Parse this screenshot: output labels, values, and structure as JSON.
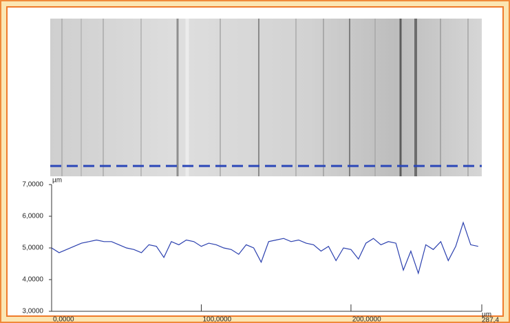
{
  "chart_data": {
    "type": "line",
    "ylabel": "µm",
    "xlabel": "µm",
    "x": [
      0,
      5,
      10,
      15,
      20,
      25,
      30,
      35,
      40,
      45,
      50,
      55,
      60,
      65,
      70,
      75,
      80,
      85,
      90,
      95,
      100,
      105,
      110,
      115,
      120,
      125,
      130,
      135,
      140,
      145,
      150,
      155,
      160,
      165,
      170,
      175,
      180,
      185,
      190,
      195,
      200,
      205,
      210,
      215,
      220,
      225,
      230,
      235,
      240,
      245,
      250,
      255,
      260,
      265,
      270,
      275,
      280,
      285
    ],
    "values": [
      5.0,
      4.85,
      4.95,
      5.05,
      5.15,
      5.2,
      5.25,
      5.2,
      5.2,
      5.1,
      5.0,
      4.95,
      4.85,
      5.1,
      5.05,
      4.7,
      5.2,
      5.1,
      5.25,
      5.2,
      5.05,
      5.15,
      5.1,
      5.0,
      4.95,
      4.8,
      5.1,
      5.0,
      4.55,
      5.2,
      5.25,
      5.3,
      5.2,
      5.25,
      5.15,
      5.1,
      4.9,
      5.05,
      4.6,
      5.0,
      4.95,
      4.65,
      5.15,
      5.3,
      5.1,
      5.2,
      5.15,
      4.3,
      4.9,
      4.2,
      5.1,
      4.95,
      5.2,
      4.6,
      5.05,
      5.8,
      5.1,
      5.05
    ],
    "color": "#2a3fae",
    "xlim": [
      0,
      287.4
    ],
    "xticks": [
      {
        "value": 0,
        "label": "0,0000"
      },
      {
        "value": 100,
        "label": "100,0000"
      },
      {
        "value": 200,
        "label": "200,0000"
      },
      {
        "value": 287.4,
        "label": "287,4"
      }
    ],
    "ylim": [
      3,
      7
    ],
    "yticks": [
      {
        "value": 3,
        "label": "3,0000"
      },
      {
        "value": 4,
        "label": "4,0000"
      },
      {
        "value": 5,
        "label": "5,0000"
      },
      {
        "value": 6,
        "label": "6,0000"
      },
      {
        "value": 7,
        "label": "7,0000"
      }
    ]
  }
}
